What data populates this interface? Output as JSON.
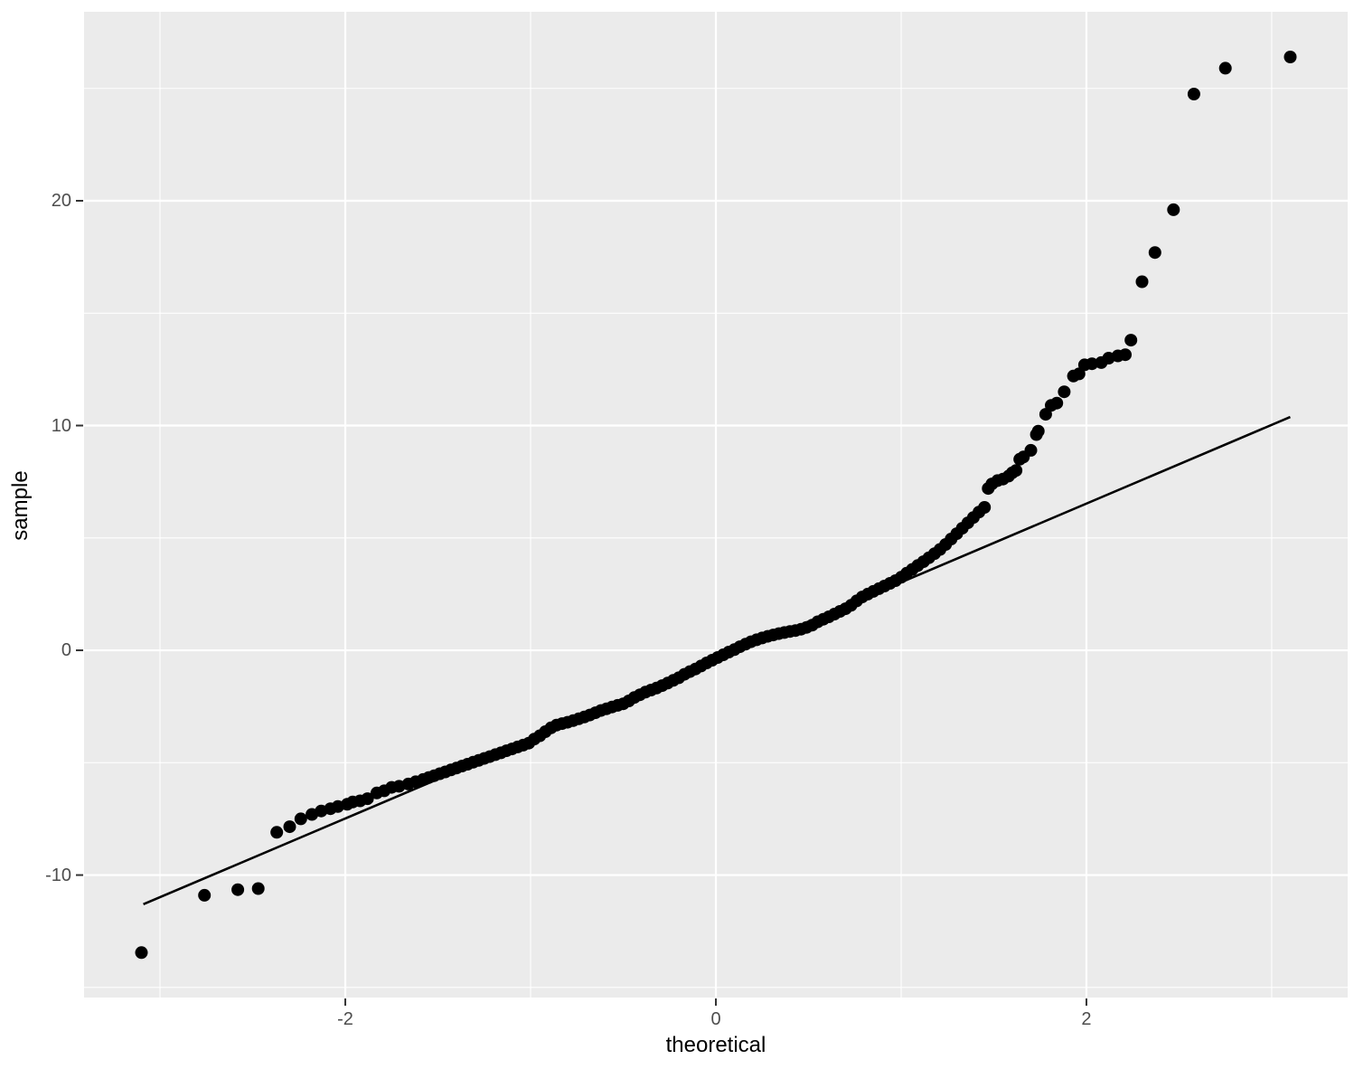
{
  "chart_data": {
    "type": "scatter",
    "subtype": "qq-plot",
    "title": "",
    "xlabel": "theoretical",
    "ylabel": "sample",
    "xlim": [
      -3.41,
      3.41
    ],
    "ylim": [
      -15.45,
      28.41
    ],
    "x_major_ticks": [
      -2,
      0,
      2
    ],
    "x_minor_gridlines": [
      -3,
      -1,
      1,
      3
    ],
    "y_major_ticks": [
      -10,
      0,
      10,
      20
    ],
    "y_minor_gridlines": [
      -15,
      -5,
      5,
      15,
      25
    ],
    "grid": "on",
    "legend": "none",
    "reference_line": {
      "x1": -3.09,
      "y1": -11.3,
      "x2": 3.1,
      "y2": 10.38
    },
    "points": [
      [
        -3.1,
        -13.45
      ],
      [
        -2.76,
        -10.9
      ],
      [
        -2.58,
        -10.65
      ],
      [
        -2.47,
        -10.6
      ],
      [
        -2.37,
        -8.1
      ],
      [
        -2.3,
        -7.85
      ],
      [
        -2.24,
        -7.5
      ],
      [
        -2.18,
        -7.3
      ],
      [
        -2.13,
        -7.15
      ],
      [
        -2.08,
        -7.05
      ],
      [
        -2.04,
        -6.95
      ],
      [
        -1.99,
        -6.85
      ],
      [
        -1.96,
        -6.75
      ],
      [
        -1.92,
        -6.7
      ],
      [
        -1.88,
        -6.6
      ],
      [
        -1.83,
        -6.35
      ],
      [
        -1.79,
        -6.25
      ],
      [
        -1.75,
        -6.1
      ],
      [
        -1.71,
        -6.05
      ],
      [
        -1.66,
        -5.95
      ],
      [
        -1.62,
        -5.85
      ],
      [
        -1.58,
        -5.75
      ],
      [
        -1.55,
        -5.66
      ],
      [
        -1.52,
        -5.58
      ],
      [
        -1.49,
        -5.49
      ],
      [
        -1.46,
        -5.41
      ],
      [
        -1.43,
        -5.32
      ],
      [
        -1.4,
        -5.24
      ],
      [
        -1.37,
        -5.15
      ],
      [
        -1.34,
        -5.07
      ],
      [
        -1.31,
        -4.98
      ],
      [
        -1.28,
        -4.9
      ],
      [
        -1.25,
        -4.81
      ],
      [
        -1.22,
        -4.73
      ],
      [
        -1.19,
        -4.64
      ],
      [
        -1.16,
        -4.56
      ],
      [
        -1.13,
        -4.47
      ],
      [
        -1.1,
        -4.39
      ],
      [
        -1.07,
        -4.3
      ],
      [
        -1.04,
        -4.22
      ],
      [
        -1.01,
        -4.13
      ],
      [
        -0.98,
        -3.95
      ],
      [
        -0.95,
        -3.8
      ],
      [
        -0.92,
        -3.62
      ],
      [
        -0.89,
        -3.45
      ],
      [
        -0.86,
        -3.33
      ],
      [
        -0.83,
        -3.26
      ],
      [
        -0.8,
        -3.2
      ],
      [
        -0.77,
        -3.13
      ],
      [
        -0.74,
        -3.05
      ],
      [
        -0.71,
        -2.97
      ],
      [
        -0.68,
        -2.88
      ],
      [
        -0.65,
        -2.78
      ],
      [
        -0.62,
        -2.68
      ],
      [
        -0.59,
        -2.6
      ],
      [
        -0.56,
        -2.52
      ],
      [
        -0.53,
        -2.45
      ],
      [
        -0.5,
        -2.38
      ],
      [
        -0.47,
        -2.25
      ],
      [
        -0.44,
        -2.1
      ],
      [
        -0.41,
        -1.98
      ],
      [
        -0.38,
        -1.86
      ],
      [
        -0.35,
        -1.77
      ],
      [
        -0.32,
        -1.68
      ],
      [
        -0.29,
        -1.57
      ],
      [
        -0.26,
        -1.46
      ],
      [
        -0.23,
        -1.34
      ],
      [
        -0.2,
        -1.22
      ],
      [
        -0.17,
        -1.07
      ],
      [
        -0.14,
        -0.95
      ],
      [
        -0.11,
        -0.83
      ],
      [
        -0.08,
        -0.7
      ],
      [
        -0.05,
        -0.56
      ],
      [
        -0.02,
        -0.44
      ],
      [
        0.01,
        -0.32
      ],
      [
        0.04,
        -0.2
      ],
      [
        0.07,
        -0.08
      ],
      [
        0.1,
        0.03
      ],
      [
        0.13,
        0.16
      ],
      [
        0.16,
        0.27
      ],
      [
        0.19,
        0.38
      ],
      [
        0.22,
        0.47
      ],
      [
        0.25,
        0.55
      ],
      [
        0.28,
        0.62
      ],
      [
        0.31,
        0.68
      ],
      [
        0.34,
        0.74
      ],
      [
        0.37,
        0.79
      ],
      [
        0.4,
        0.84
      ],
      [
        0.43,
        0.88
      ],
      [
        0.46,
        0.94
      ],
      [
        0.49,
        1.02
      ],
      [
        0.52,
        1.12
      ],
      [
        0.55,
        1.27
      ],
      [
        0.58,
        1.38
      ],
      [
        0.61,
        1.49
      ],
      [
        0.64,
        1.61
      ],
      [
        0.67,
        1.73
      ],
      [
        0.7,
        1.85
      ],
      [
        0.73,
        2.0
      ],
      [
        0.76,
        2.2
      ],
      [
        0.79,
        2.37
      ],
      [
        0.82,
        2.5
      ],
      [
        0.85,
        2.62
      ],
      [
        0.88,
        2.74
      ],
      [
        0.91,
        2.86
      ],
      [
        0.94,
        2.98
      ],
      [
        0.97,
        3.1
      ],
      [
        1.0,
        3.25
      ],
      [
        1.03,
        3.43
      ],
      [
        1.06,
        3.6
      ],
      [
        1.09,
        3.77
      ],
      [
        1.12,
        3.94
      ],
      [
        1.15,
        4.12
      ],
      [
        1.18,
        4.3
      ],
      [
        1.21,
        4.49
      ],
      [
        1.24,
        4.71
      ],
      [
        1.27,
        4.95
      ],
      [
        1.3,
        5.19
      ],
      [
        1.33,
        5.43
      ],
      [
        1.36,
        5.67
      ],
      [
        1.39,
        5.91
      ],
      [
        1.42,
        6.15
      ],
      [
        1.45,
        6.36
      ],
      [
        1.47,
        7.2
      ],
      [
        1.49,
        7.4
      ],
      [
        1.52,
        7.55
      ],
      [
        1.55,
        7.62
      ],
      [
        1.58,
        7.75
      ],
      [
        1.6,
        7.9
      ],
      [
        1.62,
        8.0
      ],
      [
        1.64,
        8.5
      ],
      [
        1.66,
        8.6
      ],
      [
        1.7,
        8.9
      ],
      [
        1.73,
        9.6
      ],
      [
        1.74,
        9.75
      ],
      [
        1.78,
        10.5
      ],
      [
        1.81,
        10.9
      ],
      [
        1.84,
        11.0
      ],
      [
        1.88,
        11.5
      ],
      [
        1.93,
        12.2
      ],
      [
        1.96,
        12.3
      ],
      [
        1.99,
        12.7
      ],
      [
        2.03,
        12.75
      ],
      [
        2.08,
        12.8
      ],
      [
        2.12,
        13.0
      ],
      [
        2.17,
        13.1
      ],
      [
        2.21,
        13.15
      ],
      [
        2.24,
        13.8
      ],
      [
        2.3,
        16.4
      ],
      [
        2.37,
        17.7
      ],
      [
        2.47,
        19.6
      ],
      [
        2.58,
        24.75
      ],
      [
        2.75,
        25.9
      ],
      [
        3.1,
        26.4
      ]
    ]
  },
  "style": {
    "panel_bg": "#EBEBEB",
    "grid_color": "#FFFFFF",
    "point_color": "#000000",
    "line_color": "#000000",
    "tick_label_color": "#4D4D4D",
    "axis_title_color": "#000000",
    "tick_mark_color": "#333333",
    "outer_bg": "#FFFFFF"
  }
}
